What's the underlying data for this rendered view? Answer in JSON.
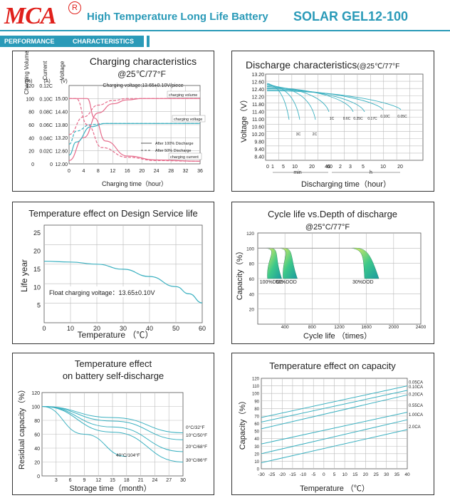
{
  "header": {
    "logo_text": "MCA",
    "registered_mark": "R",
    "subtitle": "High Temperature Long Life Battery",
    "model": "SOLAR GEL12-100",
    "section_tag_1": "PERFORMANCE",
    "section_tag_2": "CHARACTERISTICS"
  },
  "colors": {
    "accent": "#2a9ab8",
    "logo": "#e0201b"
  },
  "chart_data": [
    {
      "id": "charging",
      "type": "line",
      "title": "Charging characteristics",
      "subtitle": "@25℃/77°F",
      "note": "Charging voltage:13.65±0.10V/piece",
      "xlabel": "Charging time（hour）",
      "x_ticks": [
        "0",
        "4",
        "8",
        "12",
        "16",
        "20",
        "24",
        "28",
        "32",
        "36"
      ],
      "x_range": [
        0,
        36
      ],
      "axis_titles": [
        "Charging Volume",
        "Current",
        "Voltage"
      ],
      "axis_units": [
        "(%)",
        "(A)",
        "(V)"
      ],
      "volume_ticks": [
        "120",
        "100",
        "80",
        "60",
        "40",
        "20",
        "0"
      ],
      "current_ticks": [
        "0.12C",
        "0.10C",
        "0.08C",
        "0.06C",
        "0.04C",
        "0.02C",
        "0"
      ],
      "voltage_ticks": [
        "15.00",
        "14.40",
        "13.80",
        "13.20",
        "12.60",
        "12.00"
      ],
      "series_labels": [
        "charging volume",
        "charging voltage",
        "charging current"
      ],
      "legend": [
        "After 100% Discharge",
        "After 50% Discharge"
      ],
      "series": [
        {
          "name": "charging volume (100%)",
          "points": [
            [
              0,
              5
            ],
            [
              4,
              40
            ],
            [
              8,
              78
            ],
            [
              12,
              92
            ],
            [
              16,
              98
            ],
            [
              20,
              100
            ],
            [
              36,
              100
            ]
          ]
        },
        {
          "name": "charging volume (50%)",
          "points": [
            [
              0,
              45
            ],
            [
              4,
              72
            ],
            [
              8,
              90
            ],
            [
              12,
              97
            ],
            [
              16,
              100
            ],
            [
              36,
              100
            ]
          ]
        },
        {
          "name": "charging voltage (100%)",
          "points": [
            [
              0,
              12.4
            ],
            [
              2,
              13.0
            ],
            [
              6,
              13.7
            ],
            [
              10,
              13.85
            ],
            [
              16,
              13.85
            ],
            [
              36,
              13.85
            ]
          ]
        },
        {
          "name": "charging voltage (50%)",
          "points": [
            [
              0,
              12.9
            ],
            [
              2,
              13.5
            ],
            [
              6,
              13.8
            ],
            [
              10,
              13.85
            ],
            [
              36,
              13.85
            ]
          ]
        },
        {
          "name": "charging current (100%)",
          "points": [
            [
              0,
              0.1
            ],
            [
              5,
              0.1
            ],
            [
              7,
              0.07
            ],
            [
              10,
              0.035
            ],
            [
              16,
              0.012
            ],
            [
              24,
              0.006
            ],
            [
              36,
              0.004
            ]
          ]
        },
        {
          "name": "charging current (50%)",
          "points": [
            [
              0,
              0.1
            ],
            [
              2,
              0.1
            ],
            [
              5,
              0.06
            ],
            [
              9,
              0.025
            ],
            [
              16,
              0.01
            ],
            [
              24,
              0.005
            ],
            [
              36,
              0.004
            ]
          ]
        }
      ]
    },
    {
      "id": "discharge",
      "type": "line",
      "title": "Discharge characteristics",
      "subtitle": "(@25℃/77°F",
      "xlabel": "Discharging time（hour）",
      "ylabel": "Voltage（V）",
      "y_ticks": [
        "13.20",
        "12.60",
        "12.40",
        "12.20",
        "11.80",
        "11.40",
        "11.00",
        "10.60",
        "10.20",
        "9.80",
        "9.40",
        "8.40"
      ],
      "x_ticks": [
        "0",
        "1",
        "5",
        "10",
        "20",
        "40",
        "60",
        "2",
        "3",
        "5",
        "10",
        "20"
      ],
      "x_units": [
        "min",
        "h"
      ],
      "series_labels": [
        "3C",
        "2C",
        "1C",
        "0.6C",
        "0.25C",
        "0.17C",
        "0.10C",
        "0.05C"
      ]
    },
    {
      "id": "temp-service-life",
      "type": "line",
      "title": "Temperature effect on Design Service life",
      "xlabel": "Temperature （℃）",
      "ylabel": "Life year",
      "x": [
        0,
        10,
        20,
        30,
        40,
        50,
        60
      ],
      "x_ticks": [
        "0",
        "10",
        "20",
        "30",
        "40",
        "50",
        "60"
      ],
      "y_ticks": [
        "25",
        "20",
        "15",
        "10",
        "5"
      ],
      "y_range": [
        0,
        27
      ],
      "note": "Float charging voltage：13.65±0.10V",
      "series": [
        {
          "name": "life",
          "points": [
            [
              0,
              17
            ],
            [
              10,
              16.8
            ],
            [
              20,
              16.2
            ],
            [
              30,
              14.8
            ],
            [
              40,
              12.8
            ],
            [
              50,
              10
            ],
            [
              55,
              8
            ],
            [
              60,
              5.5
            ]
          ]
        }
      ]
    },
    {
      "id": "cycle-life",
      "type": "area",
      "title": "Cycle life vs.Depth of discharge",
      "subtitle": "@25°C/77°F",
      "xlabel": "Cycle life （times）",
      "ylabel": "Capacity（%）",
      "x_ticks": [
        "400",
        "800",
        "1200",
        "1600",
        "2000",
        "2400"
      ],
      "y_ticks": [
        "120",
        "100",
        "80",
        "60",
        "40",
        "20"
      ],
      "x_range": [
        0,
        2400
      ],
      "y_range": [
        0,
        120
      ],
      "series_labels": [
        "100%DOD",
        "50%DOD",
        "30%DOD"
      ]
    },
    {
      "id": "self-discharge",
      "type": "line",
      "title": "Temperature effect",
      "title2": "on battery self-discharge",
      "xlabel": "Storage time（month）",
      "ylabel": "Residual capacity（%）",
      "x_ticks": [
        "3",
        "6",
        "9",
        "12",
        "15",
        "18",
        "21",
        "24",
        "27",
        "30"
      ],
      "y_ticks": [
        "120",
        "100",
        "80",
        "60",
        "40",
        "20",
        "0"
      ],
      "x_range": [
        0,
        30
      ],
      "y_range": [
        0,
        120
      ],
      "series_labels": [
        "0°C/32°F",
        "10°C/50°F",
        "20°C/68°F",
        "30°C/86°F",
        "40°C/104°F"
      ],
      "series": [
        {
          "name": "0°C/32°F",
          "points": [
            [
              0,
              100
            ],
            [
              30,
              62
            ]
          ]
        },
        {
          "name": "10°C/50°F",
          "points": [
            [
              0,
              100
            ],
            [
              30,
              52
            ]
          ]
        },
        {
          "name": "20°C/68°F",
          "points": [
            [
              0,
              100
            ],
            [
              30,
              35
            ]
          ]
        },
        {
          "name": "30°C/86°F",
          "points": [
            [
              0,
              100
            ],
            [
              30,
              20
            ]
          ]
        },
        {
          "name": "40°C/104°F",
          "points": [
            [
              0,
              100
            ],
            [
              12,
              45
            ],
            [
              18,
              28
            ]
          ]
        }
      ]
    },
    {
      "id": "temp-capacity",
      "type": "line",
      "title": "Temperature effect on capacity",
      "xlabel": "Temperature （℃）",
      "ylabel": "Capacity（%）",
      "x_ticks": [
        "-30",
        "-25",
        "-20",
        "-15",
        "-10",
        "-5",
        "0",
        "5",
        "10",
        "15",
        "20",
        "25",
        "30",
        "35",
        "40"
      ],
      "y_ticks": [
        "120",
        "110",
        "100",
        "90",
        "80",
        "70",
        "60",
        "50",
        "40",
        "30",
        "20",
        "10",
        "0"
      ],
      "x_range": [
        -30,
        40
      ],
      "y_range": [
        0,
        120
      ],
      "series_labels": [
        "0.05CA",
        "0.10CA",
        "0.20CA",
        "0.55CA",
        "1.00CA",
        "2.0CA"
      ],
      "series": [
        {
          "name": "0.05CA",
          "points": [
            [
              -30,
              68
            ],
            [
              40,
              110
            ]
          ]
        },
        {
          "name": "0.10CA",
          "points": [
            [
              -30,
              62
            ],
            [
              40,
              104
            ]
          ]
        },
        {
          "name": "0.20CA",
          "points": [
            [
              -30,
              53
            ],
            [
              40,
              98
            ]
          ]
        },
        {
          "name": "0.55CA",
          "points": [
            [
              -30,
              33
            ],
            [
              40,
              75
            ]
          ]
        },
        {
          "name": "1.00CA",
          "points": [
            [
              -30,
              20
            ],
            [
              40,
              65
            ]
          ]
        },
        {
          "name": "2.0CA",
          "points": [
            [
              -30,
              8
            ],
            [
              40,
              52
            ]
          ]
        }
      ]
    }
  ]
}
